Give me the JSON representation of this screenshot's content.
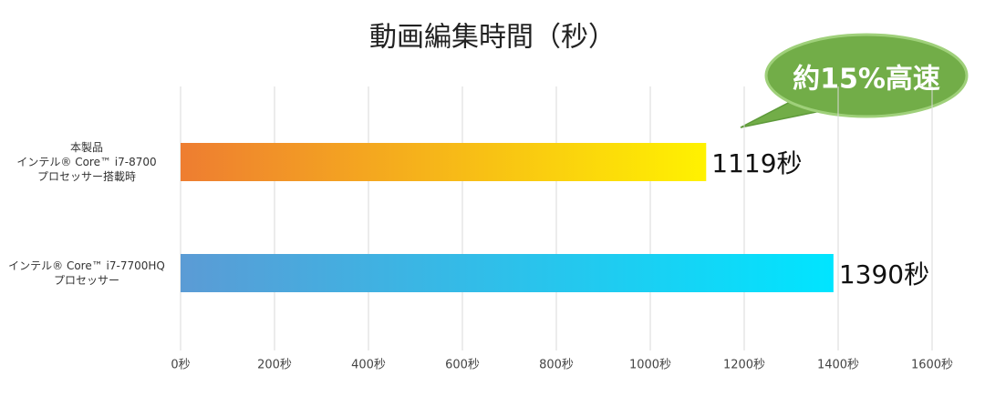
{
  "chart_data": {
    "type": "hbar",
    "title": "動画編集時間（秒）",
    "categories": [
      "本製品\nインテル® Core™ i7-8700\nプロセッサー搭載時",
      "インテル® Core™ i7-7700HQ\nプロセッサー"
    ],
    "values": [
      1119,
      1390
    ],
    "value_labels": [
      "1119秒",
      "1390秒"
    ],
    "colors": [
      [
        "#ee7d31",
        "#fff200"
      ],
      [
        "#5b9bd5",
        "#00e5ff"
      ]
    ],
    "xlim": [
      0,
      1600
    ],
    "xticks": [
      {
        "value": 0,
        "label": "0秒"
      },
      {
        "value": 200,
        "label": "200秒"
      },
      {
        "value": 400,
        "label": "400秒"
      },
      {
        "value": 600,
        "label": "600秒"
      },
      {
        "value": 800,
        "label": "800秒"
      },
      {
        "value": 1000,
        "label": "1000秒"
      },
      {
        "value": 1200,
        "label": "1200秒"
      },
      {
        "value": 1400,
        "label": "1400秒"
      },
      {
        "value": 1600,
        "label": "1600秒"
      }
    ],
    "grid": true,
    "annotation": "約15%高速"
  }
}
